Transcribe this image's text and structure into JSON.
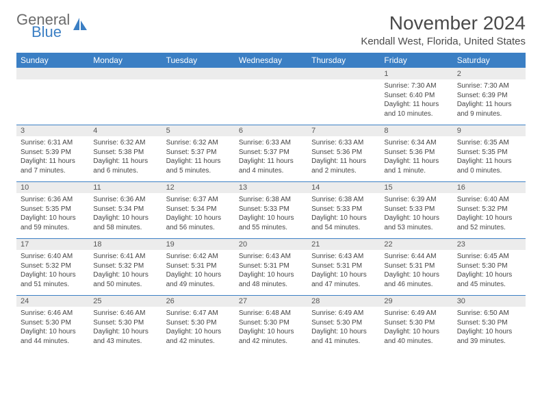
{
  "brand": {
    "line1": "General",
    "line2": "Blue",
    "icon_color": "#3b7fc4"
  },
  "header": {
    "title": "November 2024",
    "location": "Kendall West, Florida, United States",
    "title_color": "#4a4a4a",
    "title_fontsize": 28,
    "subtitle_fontsize": 15
  },
  "calendar": {
    "header_bg": "#3b7fc4",
    "header_fg": "#ffffff",
    "daynum_bg": "#ececec",
    "row_border": "#3b7fc4",
    "body_bg": "#ffffff",
    "text_color": "#444444",
    "font_size_header": 12,
    "font_size_daynum": 11,
    "font_size_detail": 10,
    "columns": [
      "Sunday",
      "Monday",
      "Tuesday",
      "Wednesday",
      "Thursday",
      "Friday",
      "Saturday"
    ],
    "weeks": [
      {
        "nums": [
          "",
          "",
          "",
          "",
          "",
          "1",
          "2"
        ],
        "cells": [
          null,
          null,
          null,
          null,
          null,
          {
            "sunrise": "7:30 AM",
            "sunset": "6:40 PM",
            "daylight": "11 hours and 10 minutes."
          },
          {
            "sunrise": "7:30 AM",
            "sunset": "6:39 PM",
            "daylight": "11 hours and 9 minutes."
          }
        ]
      },
      {
        "nums": [
          "3",
          "4",
          "5",
          "6",
          "7",
          "8",
          "9"
        ],
        "cells": [
          {
            "sunrise": "6:31 AM",
            "sunset": "5:39 PM",
            "daylight": "11 hours and 7 minutes."
          },
          {
            "sunrise": "6:32 AM",
            "sunset": "5:38 PM",
            "daylight": "11 hours and 6 minutes."
          },
          {
            "sunrise": "6:32 AM",
            "sunset": "5:37 PM",
            "daylight": "11 hours and 5 minutes."
          },
          {
            "sunrise": "6:33 AM",
            "sunset": "5:37 PM",
            "daylight": "11 hours and 4 minutes."
          },
          {
            "sunrise": "6:33 AM",
            "sunset": "5:36 PM",
            "daylight": "11 hours and 2 minutes."
          },
          {
            "sunrise": "6:34 AM",
            "sunset": "5:36 PM",
            "daylight": "11 hours and 1 minute."
          },
          {
            "sunrise": "6:35 AM",
            "sunset": "5:35 PM",
            "daylight": "11 hours and 0 minutes."
          }
        ]
      },
      {
        "nums": [
          "10",
          "11",
          "12",
          "13",
          "14",
          "15",
          "16"
        ],
        "cells": [
          {
            "sunrise": "6:36 AM",
            "sunset": "5:35 PM",
            "daylight": "10 hours and 59 minutes."
          },
          {
            "sunrise": "6:36 AM",
            "sunset": "5:34 PM",
            "daylight": "10 hours and 58 minutes."
          },
          {
            "sunrise": "6:37 AM",
            "sunset": "5:34 PM",
            "daylight": "10 hours and 56 minutes."
          },
          {
            "sunrise": "6:38 AM",
            "sunset": "5:33 PM",
            "daylight": "10 hours and 55 minutes."
          },
          {
            "sunrise": "6:38 AM",
            "sunset": "5:33 PM",
            "daylight": "10 hours and 54 minutes."
          },
          {
            "sunrise": "6:39 AM",
            "sunset": "5:33 PM",
            "daylight": "10 hours and 53 minutes."
          },
          {
            "sunrise": "6:40 AM",
            "sunset": "5:32 PM",
            "daylight": "10 hours and 52 minutes."
          }
        ]
      },
      {
        "nums": [
          "17",
          "18",
          "19",
          "20",
          "21",
          "22",
          "23"
        ],
        "cells": [
          {
            "sunrise": "6:40 AM",
            "sunset": "5:32 PM",
            "daylight": "10 hours and 51 minutes."
          },
          {
            "sunrise": "6:41 AM",
            "sunset": "5:32 PM",
            "daylight": "10 hours and 50 minutes."
          },
          {
            "sunrise": "6:42 AM",
            "sunset": "5:31 PM",
            "daylight": "10 hours and 49 minutes."
          },
          {
            "sunrise": "6:43 AM",
            "sunset": "5:31 PM",
            "daylight": "10 hours and 48 minutes."
          },
          {
            "sunrise": "6:43 AM",
            "sunset": "5:31 PM",
            "daylight": "10 hours and 47 minutes."
          },
          {
            "sunrise": "6:44 AM",
            "sunset": "5:31 PM",
            "daylight": "10 hours and 46 minutes."
          },
          {
            "sunrise": "6:45 AM",
            "sunset": "5:30 PM",
            "daylight": "10 hours and 45 minutes."
          }
        ]
      },
      {
        "nums": [
          "24",
          "25",
          "26",
          "27",
          "28",
          "29",
          "30"
        ],
        "cells": [
          {
            "sunrise": "6:46 AM",
            "sunset": "5:30 PM",
            "daylight": "10 hours and 44 minutes."
          },
          {
            "sunrise": "6:46 AM",
            "sunset": "5:30 PM",
            "daylight": "10 hours and 43 minutes."
          },
          {
            "sunrise": "6:47 AM",
            "sunset": "5:30 PM",
            "daylight": "10 hours and 42 minutes."
          },
          {
            "sunrise": "6:48 AM",
            "sunset": "5:30 PM",
            "daylight": "10 hours and 42 minutes."
          },
          {
            "sunrise": "6:49 AM",
            "sunset": "5:30 PM",
            "daylight": "10 hours and 41 minutes."
          },
          {
            "sunrise": "6:49 AM",
            "sunset": "5:30 PM",
            "daylight": "10 hours and 40 minutes."
          },
          {
            "sunrise": "6:50 AM",
            "sunset": "5:30 PM",
            "daylight": "10 hours and 39 minutes."
          }
        ]
      }
    ]
  },
  "labels": {
    "sunrise": "Sunrise:",
    "sunset": "Sunset:",
    "daylight": "Daylight:"
  }
}
